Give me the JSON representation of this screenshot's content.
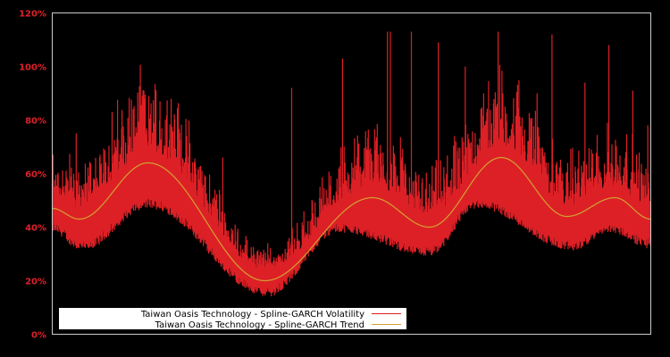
{
  "chart_data": {
    "type": "line",
    "title": "",
    "xlabel": "",
    "ylabel": "",
    "ylim": [
      0,
      120
    ],
    "y_ticks": [
      "0%",
      "20%",
      "40%",
      "60%",
      "80%",
      "100%",
      "120%"
    ],
    "y_tick_values": [
      0,
      20,
      40,
      60,
      80,
      100,
      120
    ],
    "grid": false,
    "legend_position": "lower left",
    "colors": {
      "background": "#000000",
      "axis": "#cccccc",
      "tick_labels": "#e0202a",
      "volatility": "#dd2026",
      "trend": "#d4a030"
    },
    "series": [
      {
        "name": "Taiwan Oasis Technology - Spline-GARCH Volatility",
        "color": "#dd2026",
        "note": "dense daily series; values approximate",
        "floor_x": [
          0,
          0.05,
          0.16,
          0.36,
          0.48,
          0.63,
          0.71,
          0.87,
          0.93,
          1.0
        ],
        "floor_pct": [
          38,
          31,
          47,
          14,
          38,
          29,
          47,
          31,
          38,
          32
        ],
        "spikes_x": [
          0.01,
          0.04,
          0.1,
          0.155,
          0.18,
          0.225,
          0.285,
          0.4,
          0.485,
          0.56,
          0.565,
          0.6,
          0.645,
          0.69,
          0.745,
          0.81,
          0.835,
          0.89,
          0.93,
          0.97,
          0.995
        ],
        "spikes_pct": [
          59,
          75,
          83,
          88,
          87,
          68,
          66,
          92,
          103,
          113,
          113,
          113,
          109,
          100,
          113,
          90,
          112,
          94,
          108,
          91,
          78
        ]
      },
      {
        "name": "Taiwan Oasis Technology - Spline-GARCH Trend",
        "color": "#d4a030",
        "x": [
          0,
          0.045,
          0.16,
          0.355,
          0.535,
          0.63,
          0.75,
          0.86,
          0.94,
          1.0
        ],
        "values": [
          47,
          43,
          64,
          20,
          51,
          40,
          66,
          44,
          51,
          43
        ]
      }
    ]
  },
  "legend": {
    "items": [
      {
        "label": "Taiwan Oasis Technology - Spline-GARCH Volatility",
        "color": "#dd2026"
      },
      {
        "label": "Taiwan Oasis Technology - Spline-GARCH Trend",
        "color": "#d4a030"
      }
    ]
  }
}
